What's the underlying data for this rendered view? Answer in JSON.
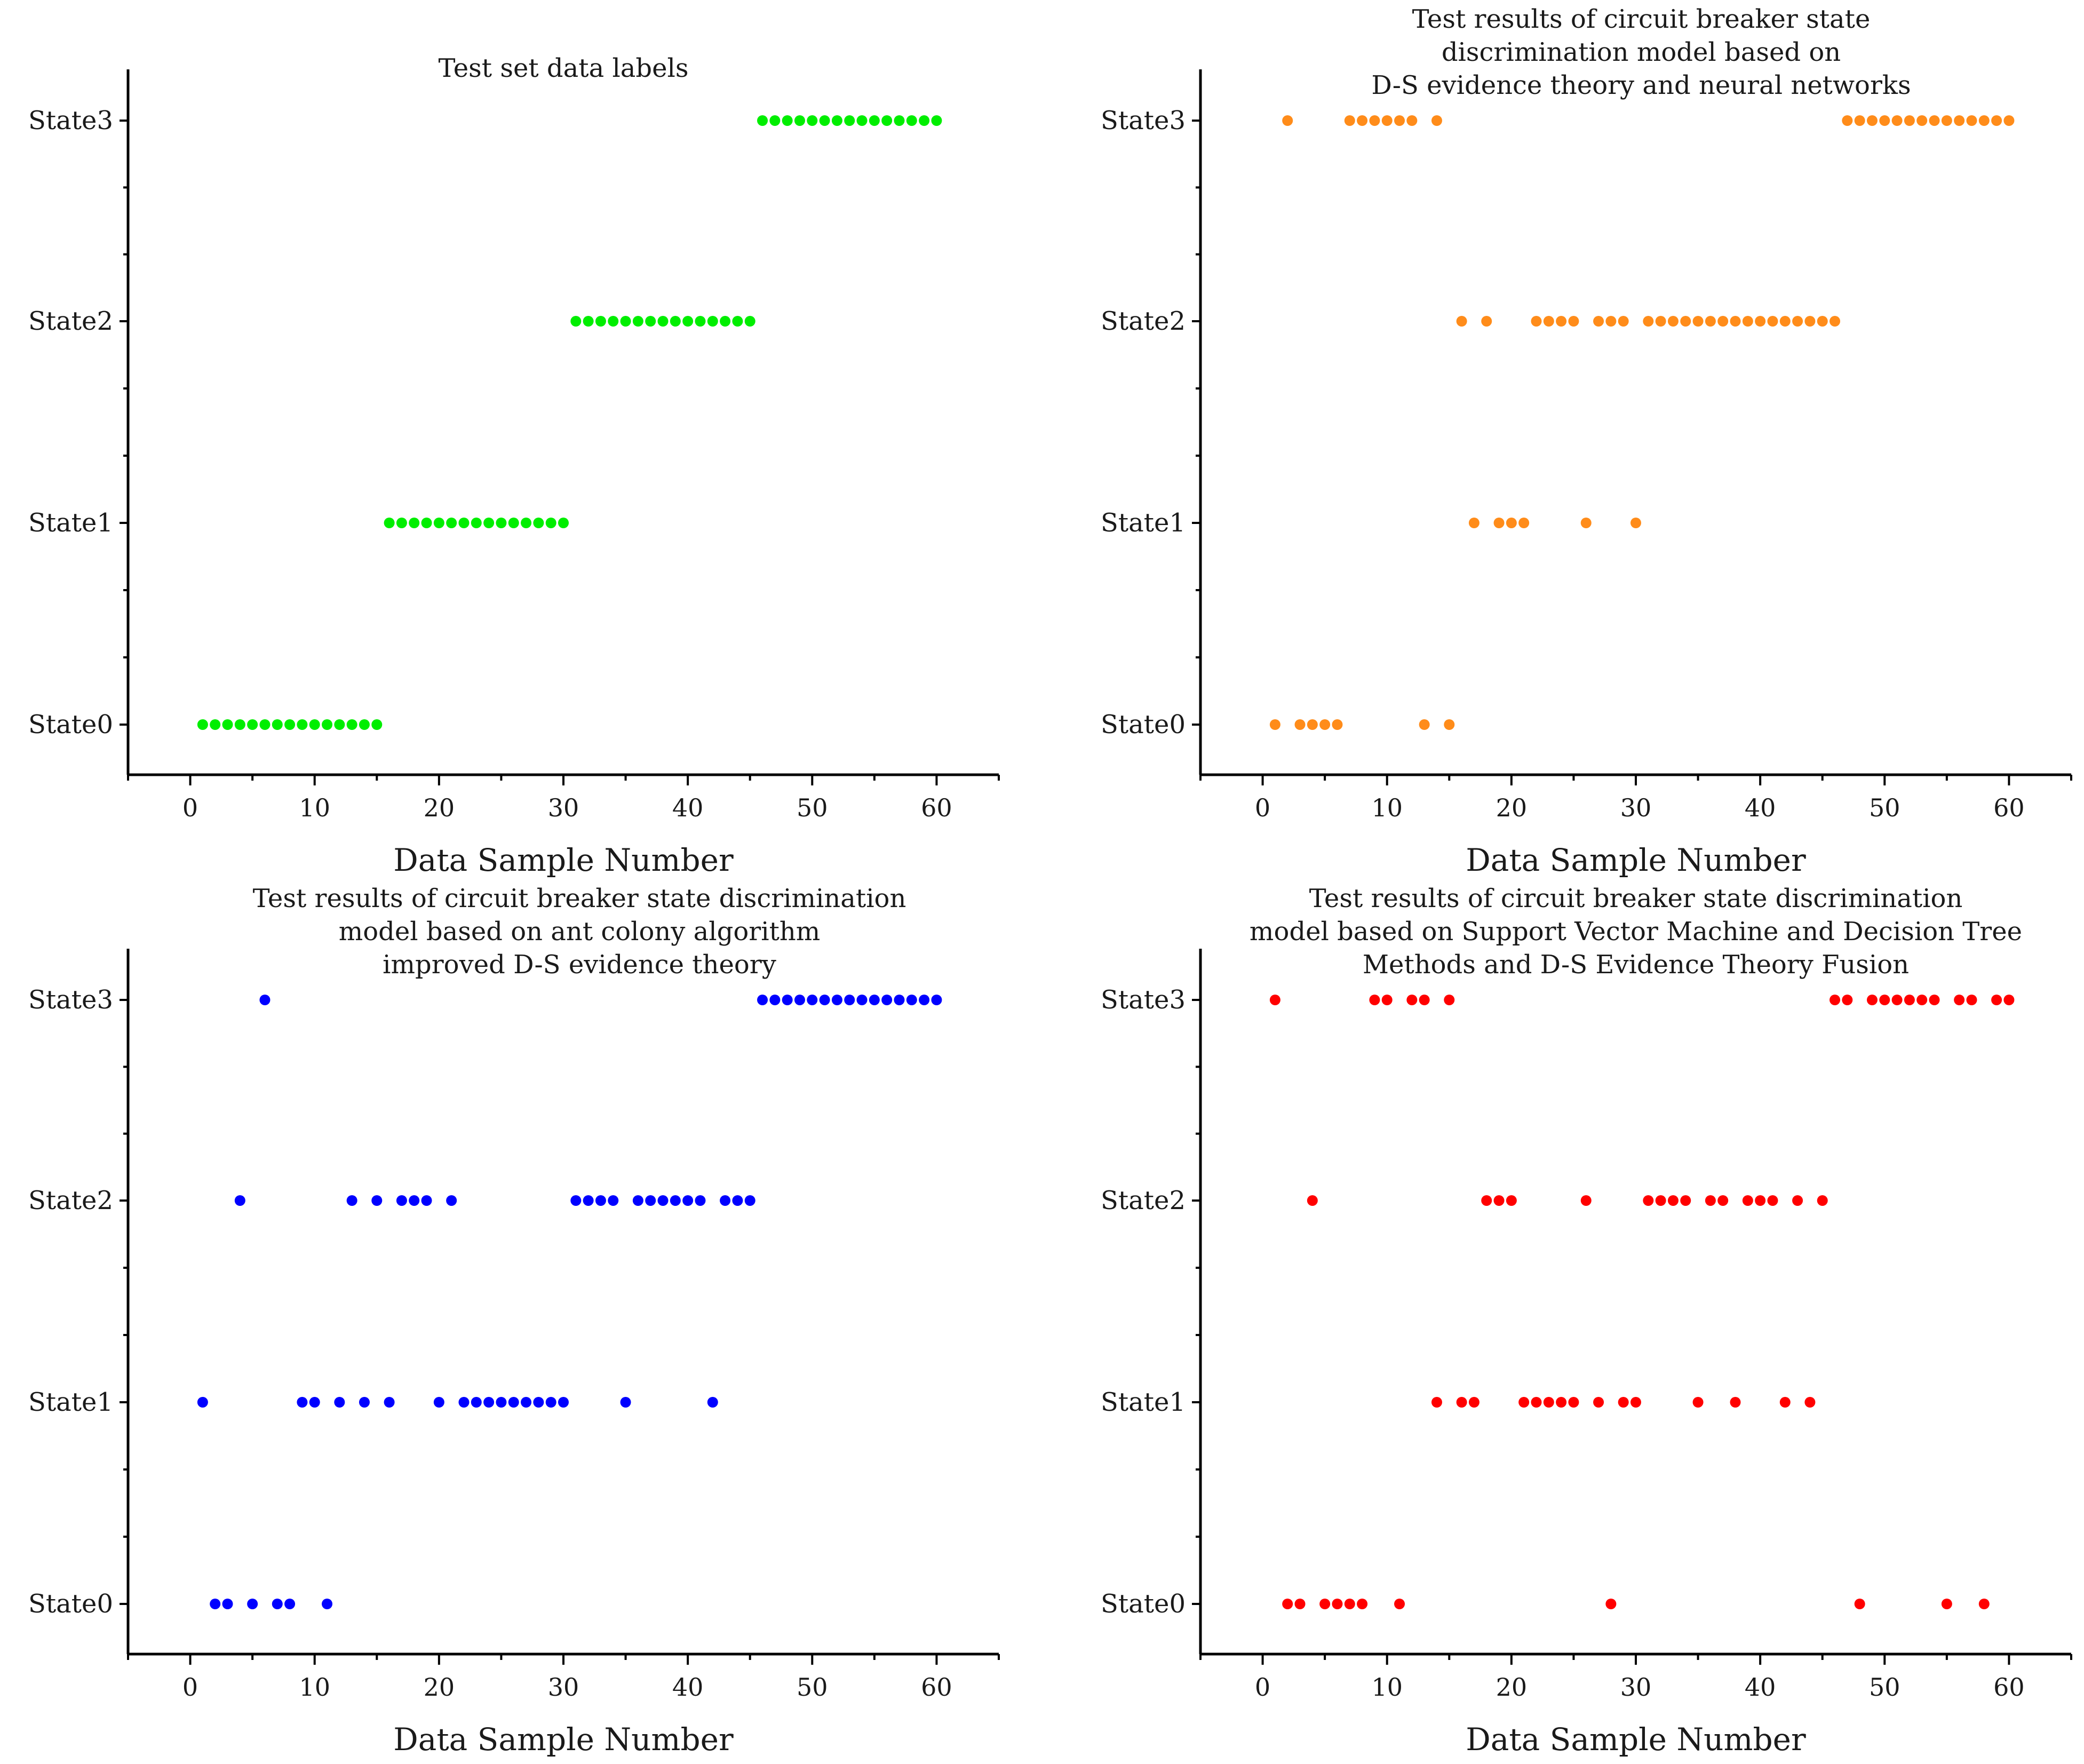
{
  "chart_data": [
    {
      "type": "scatter",
      "title_lines": [
        "Test set data labels"
      ],
      "xlabel": "Data Sample Number",
      "xlim": [
        -5,
        65
      ],
      "xticks": [
        0,
        10,
        20,
        30,
        40,
        50,
        60
      ],
      "ylabel": "",
      "categories": [
        "State0",
        "State1",
        "State2",
        "State3"
      ],
      "color": "#00ee00",
      "series": [
        {
          "state": "State0",
          "x": [
            1,
            2,
            3,
            4,
            5,
            6,
            7,
            8,
            9,
            10,
            11,
            12,
            13,
            14,
            15
          ]
        },
        {
          "state": "State1",
          "x": [
            16,
            17,
            18,
            19,
            20,
            21,
            22,
            23,
            24,
            25,
            26,
            27,
            28,
            29,
            30
          ]
        },
        {
          "state": "State2",
          "x": [
            31,
            32,
            33,
            34,
            35,
            36,
            37,
            38,
            39,
            40,
            41,
            42,
            43,
            44,
            45
          ]
        },
        {
          "state": "State3",
          "x": [
            46,
            47,
            48,
            49,
            50,
            51,
            52,
            53,
            54,
            55,
            56,
            57,
            58,
            59,
            60
          ]
        }
      ]
    },
    {
      "type": "scatter",
      "title_lines": [
        "Test results of circuit breaker state",
        "discrimination model based on",
        "D-S evidence theory and neural networks"
      ],
      "xlabel": "Data Sample Number",
      "xlim": [
        -5,
        65
      ],
      "xticks": [
        0,
        10,
        20,
        30,
        40,
        50,
        60
      ],
      "ylabel": "",
      "categories": [
        "State0",
        "State1",
        "State2",
        "State3"
      ],
      "color": "#ff8c1a",
      "series": [
        {
          "state": "State0",
          "x": [
            1,
            3,
            4,
            5,
            6,
            13,
            15
          ]
        },
        {
          "state": "State1",
          "x": [
            17,
            19,
            20,
            21,
            26,
            30
          ]
        },
        {
          "state": "State2",
          "x": [
            16,
            18,
            22,
            23,
            24,
            25,
            27,
            28,
            29,
            31,
            32,
            33,
            34,
            35,
            36,
            37,
            38,
            39,
            40,
            41,
            42,
            43,
            44,
            45,
            46
          ]
        },
        {
          "state": "State3",
          "x": [
            2,
            7,
            8,
            9,
            10,
            11,
            12,
            14,
            47,
            48,
            49,
            50,
            51,
            52,
            53,
            54,
            55,
            56,
            57,
            58,
            59,
            60
          ]
        }
      ]
    },
    {
      "type": "scatter",
      "title_lines": [
        "Test results of circuit breaker state discrimination",
        "model based on ant colony algorithm",
        "improved D-S evidence theory"
      ],
      "xlabel": "Data Sample Number",
      "xlim": [
        -5,
        65
      ],
      "xticks": [
        0,
        10,
        20,
        30,
        40,
        50,
        60
      ],
      "ylabel": "",
      "categories": [
        "State0",
        "State1",
        "State2",
        "State3"
      ],
      "color": "#0000ff",
      "series": [
        {
          "state": "State0",
          "x": [
            2,
            3,
            5,
            7,
            8,
            11
          ]
        },
        {
          "state": "State1",
          "x": [
            1,
            9,
            10,
            12,
            14,
            16,
            20,
            22,
            23,
            24,
            25,
            26,
            27,
            28,
            29,
            30,
            35,
            42
          ]
        },
        {
          "state": "State2",
          "x": [
            4,
            13,
            15,
            17,
            18,
            19,
            21,
            31,
            32,
            33,
            34,
            36,
            37,
            38,
            39,
            40,
            41,
            43,
            44,
            45
          ]
        },
        {
          "state": "State3",
          "x": [
            6,
            46,
            47,
            48,
            49,
            50,
            51,
            52,
            53,
            54,
            55,
            56,
            57,
            58,
            59,
            60
          ]
        }
      ]
    },
    {
      "type": "scatter",
      "title_lines": [
        "Test results of circuit breaker state discrimination",
        "model based on Support Vector Machine and Decision Tree",
        "Methods and D-S Evidence Theory Fusion"
      ],
      "xlabel": "Data Sample Number",
      "xlim": [
        -5,
        65
      ],
      "xticks": [
        0,
        10,
        20,
        30,
        40,
        50,
        60
      ],
      "ylabel": "",
      "categories": [
        "State0",
        "State1",
        "State2",
        "State3"
      ],
      "color": "#ff0000",
      "series": [
        {
          "state": "State0",
          "x": [
            2,
            3,
            5,
            6,
            7,
            8,
            11,
            28,
            48,
            55,
            58
          ]
        },
        {
          "state": "State1",
          "x": [
            14,
            16,
            17,
            21,
            22,
            23,
            24,
            25,
            27,
            29,
            30,
            35,
            38,
            42,
            44
          ]
        },
        {
          "state": "State2",
          "x": [
            4,
            18,
            19,
            20,
            26,
            31,
            32,
            33,
            34,
            36,
            37,
            39,
            40,
            41,
            43,
            45
          ]
        },
        {
          "state": "State3",
          "x": [
            1,
            9,
            10,
            12,
            13,
            15,
            46,
            47,
            49,
            50,
            51,
            52,
            53,
            54,
            56,
            57,
            59,
            60
          ]
        }
      ]
    }
  ]
}
